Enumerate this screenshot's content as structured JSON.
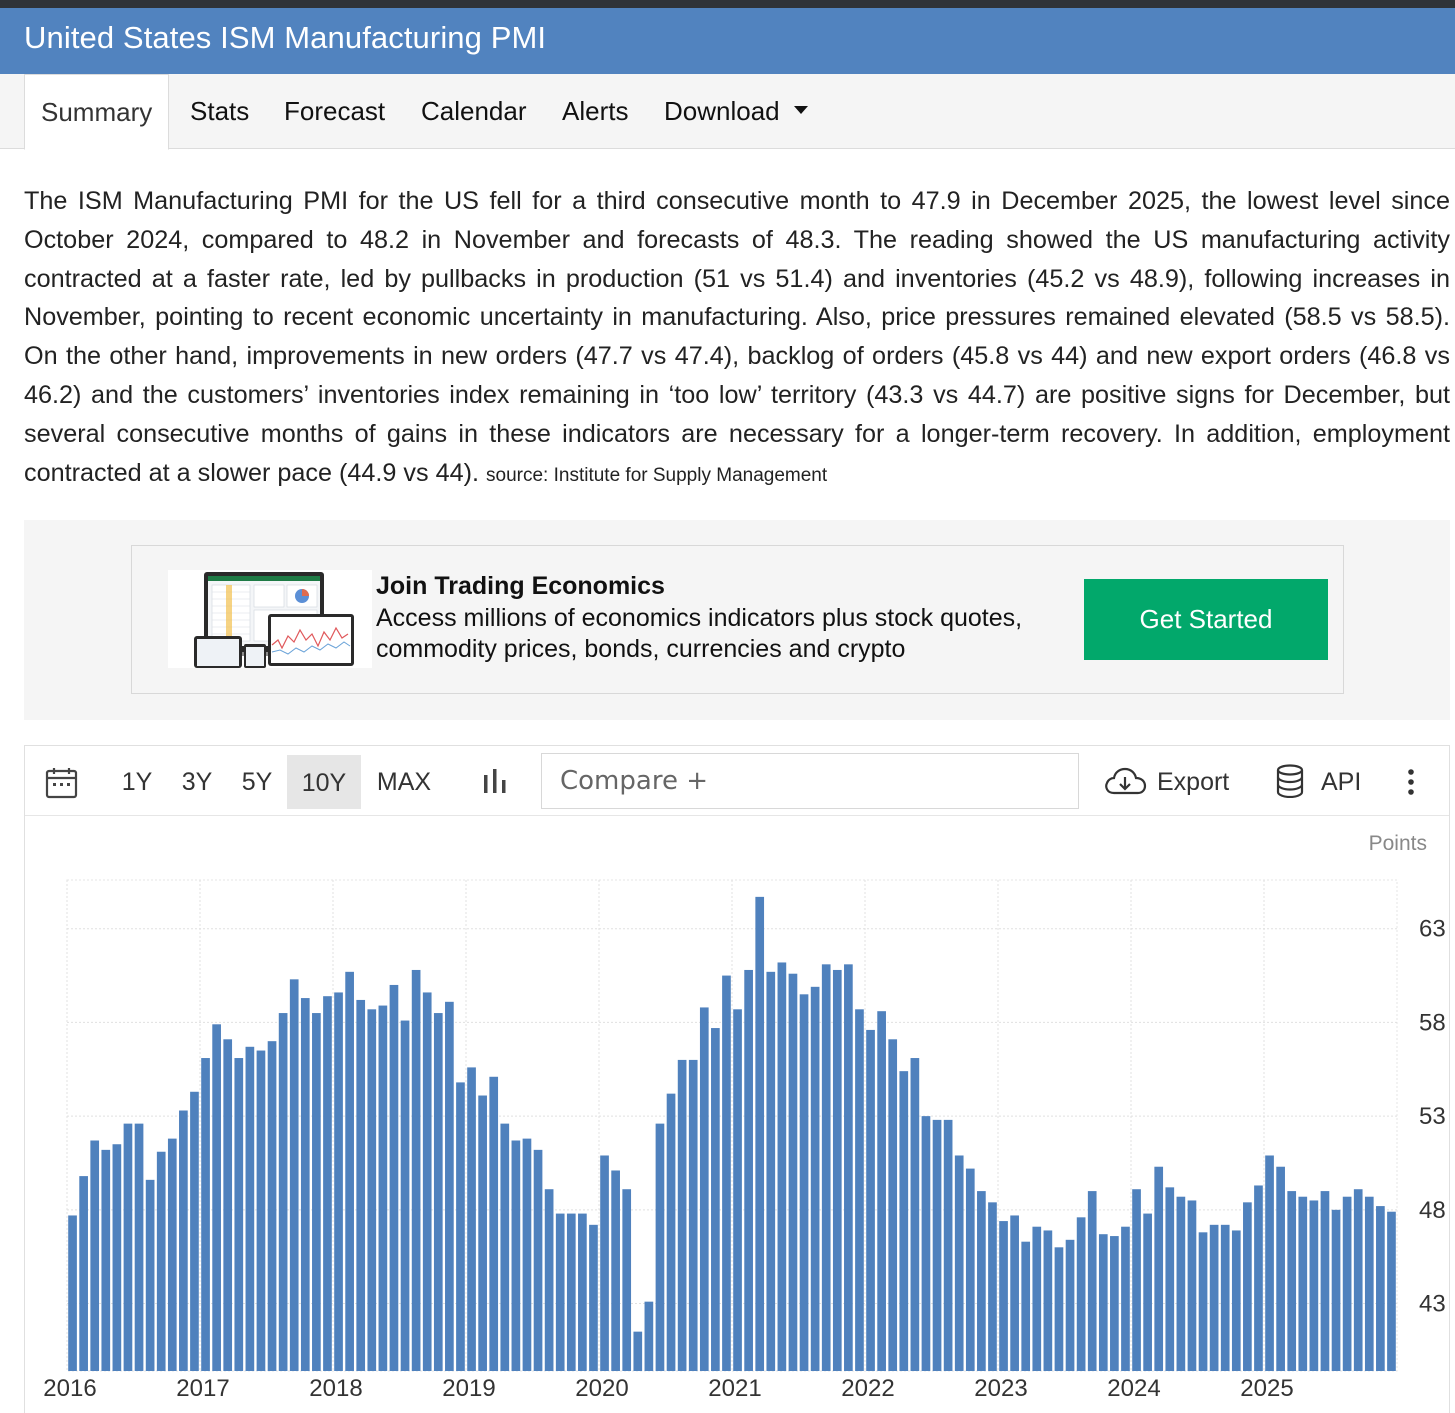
{
  "header": {
    "title": "United States ISM Manufacturing PMI"
  },
  "tabs": [
    {
      "label": "Summary"
    },
    {
      "label": "Stats"
    },
    {
      "label": "Forecast"
    },
    {
      "label": "Calendar"
    },
    {
      "label": "Alerts"
    },
    {
      "label": "Download"
    }
  ],
  "summary": {
    "text": "The ISM Manufacturing PMI for the US fell for a third consecutive month to 47.9 in December 2025, the lowest level since October 2024, compared to 48.2 in November and forecasts of 48.3. The reading showed the US manufacturing activity contracted at a faster rate, led by pullbacks in production (51 vs 51.4) and inventories (45.2 vs 48.9), following increases in November, pointing to recent economic uncertainty in manufacturing. Also, price pressures remained elevated (58.5 vs 58.5). On the other hand, improvements in new orders (47.7 vs 47.4), backlog of orders (45.8 vs 44) and new export orders (46.8 vs 46.2) and the customers’ inventories index remaining in ‘too low’ territory (43.3 vs 44.7) are positive signs for December, but several consecutive months of gains in these indicators are necessary for a longer-term recovery. In addition, employment contracted at a slower pace (44.9 vs 44).",
    "source": "source: Institute for Supply Management"
  },
  "promo": {
    "title": "Join Trading Economics",
    "line1": "Access millions of economics indicators plus stock quotes,",
    "line2": "commodity prices, bonds, currencies and crypto",
    "button": "Get Started",
    "button_color": "#02a86b"
  },
  "toolbar": {
    "ranges": [
      "1Y",
      "3Y",
      "5Y",
      "10Y",
      "MAX"
    ],
    "active_range": "10Y",
    "compare_placeholder": "Compare +",
    "export_label": "Export",
    "api_label": "API",
    "icons": [
      "calendar-icon",
      "bar-chart-icon",
      "cloud-download-icon",
      "database-icon",
      "more-vertical-icon"
    ]
  },
  "colors": {
    "header": "#5183bf",
    "bar": "#4f81bd",
    "accent_button": "#02a86b"
  },
  "chart_data": {
    "type": "bar",
    "units": "Points",
    "x_tick_labels": [
      "2016",
      "2017",
      "2018",
      "2019",
      "2020",
      "2021",
      "2022",
      "2023",
      "2024",
      "2025"
    ],
    "y_ticks": [
      43,
      48,
      53,
      58,
      63
    ],
    "ylim": [
      39.4,
      65.6
    ],
    "grid": true,
    "start": "2016-01",
    "end": "2025-12",
    "values": [
      47.7,
      49.8,
      51.7,
      51.2,
      51.5,
      52.6,
      52.6,
      49.6,
      51.1,
      51.8,
      53.3,
      54.3,
      56.1,
      57.9,
      57.1,
      56.1,
      56.7,
      56.5,
      57.0,
      58.5,
      60.3,
      59.3,
      58.5,
      59.4,
      59.6,
      60.7,
      59.2,
      58.7,
      58.9,
      60.0,
      58.1,
      60.8,
      59.6,
      58.5,
      59.1,
      54.8,
      55.6,
      54.1,
      55.1,
      52.6,
      51.7,
      51.8,
      51.2,
      49.1,
      47.8,
      47.8,
      47.8,
      47.2,
      50.9,
      50.1,
      49.1,
      41.5,
      43.1,
      52.6,
      54.2,
      56.0,
      56.0,
      58.8,
      57.7,
      60.5,
      58.7,
      60.8,
      64.7,
      60.7,
      61.2,
      60.6,
      59.5,
      59.9,
      61.1,
      60.8,
      61.1,
      58.7,
      57.6,
      58.6,
      57.1,
      55.4,
      56.1,
      53.0,
      52.8,
      52.8,
      50.9,
      50.2,
      49.0,
      48.4,
      47.4,
      47.7,
      46.3,
      47.1,
      46.9,
      46.0,
      46.4,
      47.6,
      49.0,
      46.7,
      46.6,
      47.1,
      49.1,
      47.8,
      50.3,
      49.2,
      48.7,
      48.5,
      46.8,
      47.2,
      47.2,
      46.9,
      48.4,
      49.3,
      50.9,
      50.3,
      49.0,
      48.7,
      48.5,
      49.0,
      48.0,
      48.7,
      49.1,
      48.7,
      48.2,
      47.9
    ]
  }
}
